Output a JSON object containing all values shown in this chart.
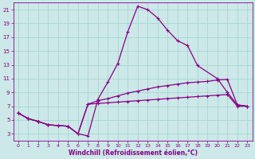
{
  "xlabel": "Windchill (Refroidissement éolien,°C)",
  "bg_color": "#cce8e8",
  "grid_color": "#aad4d4",
  "line_color": "#880088",
  "xlim": [
    -0.5,
    23.5
  ],
  "ylim": [
    2,
    22
  ],
  "xticks": [
    0,
    1,
    2,
    3,
    4,
    5,
    6,
    7,
    8,
    9,
    10,
    11,
    12,
    13,
    14,
    15,
    16,
    17,
    18,
    19,
    20,
    21,
    22,
    23
  ],
  "yticks": [
    3,
    5,
    7,
    9,
    11,
    13,
    15,
    17,
    19,
    21
  ],
  "line1_x": [
    0,
    1,
    2,
    3,
    4,
    5,
    6,
    7,
    8,
    9,
    10,
    11,
    12,
    13,
    14,
    15,
    16,
    17,
    18,
    20,
    21,
    22,
    23
  ],
  "line1_y": [
    6.0,
    5.2,
    4.8,
    4.3,
    4.2,
    4.1,
    3.0,
    2.7,
    8.0,
    10.5,
    13.2,
    17.8,
    21.5,
    21.0,
    19.8,
    18.0,
    16.5,
    15.8,
    12.9,
    11.0,
    9.0,
    7.2,
    7.0
  ],
  "line2_x": [
    0,
    1,
    2,
    3,
    4,
    5,
    6,
    7,
    8,
    9,
    10,
    11,
    12,
    13,
    14,
    15,
    16,
    17,
    18,
    19,
    20,
    21,
    22,
    23
  ],
  "line2_y": [
    6.0,
    5.2,
    4.8,
    4.3,
    4.2,
    4.1,
    3.0,
    7.3,
    7.8,
    8.1,
    8.5,
    8.9,
    9.2,
    9.5,
    9.8,
    10.0,
    10.2,
    10.4,
    10.5,
    10.6,
    10.8,
    10.9,
    7.2,
    7.0
  ],
  "line3_x": [
    0,
    1,
    2,
    3,
    4,
    5,
    6,
    7,
    8,
    9,
    10,
    11,
    12,
    13,
    14,
    15,
    16,
    17,
    18,
    19,
    20,
    21,
    22,
    23
  ],
  "line3_y": [
    6.0,
    5.2,
    4.8,
    4.3,
    4.2,
    4.1,
    3.0,
    7.3,
    7.4,
    7.5,
    7.6,
    7.7,
    7.8,
    7.9,
    8.0,
    8.1,
    8.2,
    8.3,
    8.4,
    8.5,
    8.6,
    8.7,
    7.0,
    7.0
  ]
}
